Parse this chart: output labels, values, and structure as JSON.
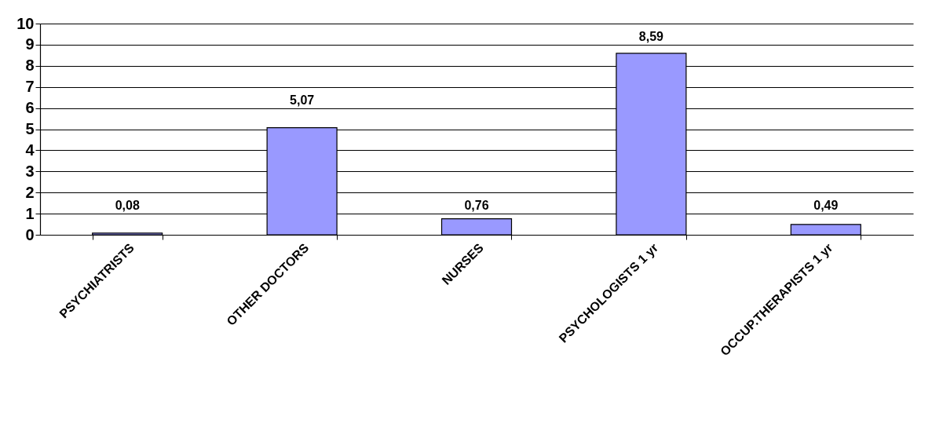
{
  "chart_data": {
    "type": "bar",
    "categories": [
      "PSYCHIATRISTS",
      "OTHER DOCTORS",
      "NURSES",
      "PSYCHOLOGISTS 1 yr",
      "OCCUP.THERAPISTS 1 yr"
    ],
    "values": [
      0.08,
      5.07,
      0.76,
      8.59,
      0.49
    ],
    "value_labels": [
      "0,08",
      "5,07",
      "0,76",
      "8,59",
      "0,49"
    ],
    "color": "#9999ff",
    "ylim": [
      0,
      10
    ],
    "yticks": [
      0,
      1,
      2,
      3,
      4,
      5,
      6,
      7,
      8,
      9,
      10
    ],
    "grid": "y"
  }
}
